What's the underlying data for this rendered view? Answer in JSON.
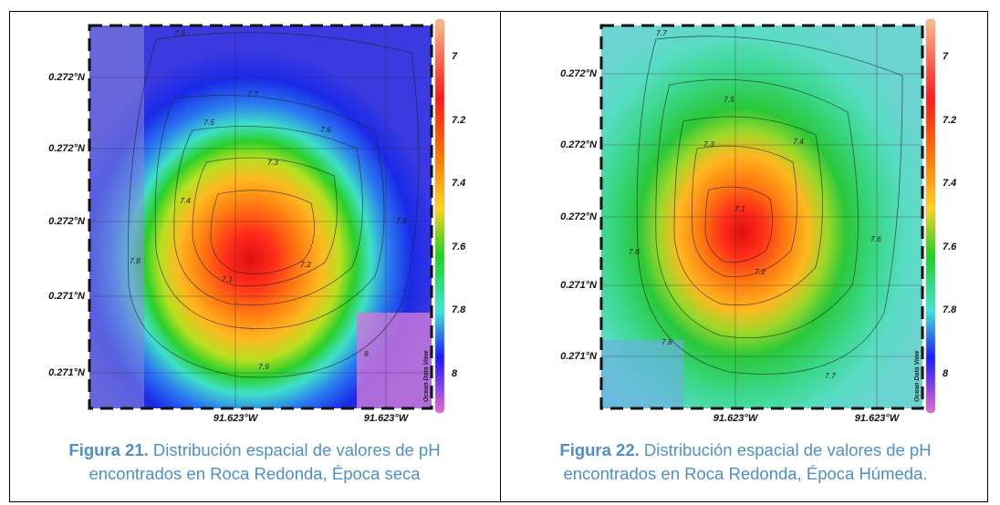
{
  "colors": {
    "caption": "#4f8fc8",
    "scale": [
      "#f9c08a",
      "#ff1a1a",
      "#ff7f00",
      "#ffd21f",
      "#1fd21f",
      "#3fe6d6",
      "#1a1aff",
      "#e66ad2"
    ]
  },
  "figures": [
    {
      "y_ticks": [
        "0.272°N",
        "0.272°N",
        "0.272°N",
        "0.271°N",
        "0.271°N"
      ],
      "x_ticks": [
        "91.623°W",
        "91.623°W"
      ],
      "colorbar_ticks": [
        "7",
        "7.2",
        "7.4",
        "7.6",
        "7.8",
        "8"
      ],
      "contour_labels": [
        "7.9",
        "7.7",
        "7.6",
        "7.5",
        "7.3",
        "7.4",
        "7.8",
        "7.1",
        "7.2",
        "7.8",
        "7.9",
        "8"
      ],
      "watermark": "Ocean Data View",
      "caption_label": "Figura 21.",
      "caption_line1": "Distribución espacial de valores de pH",
      "caption_line2": "encontrados en Roca Redonda, Época seca"
    },
    {
      "y_ticks": [
        "0.272°N",
        "0.272°N",
        "0.272°N",
        "0.271°N",
        "0.271°N"
      ],
      "x_ticks": [
        "91.623°W",
        "91.623°W"
      ],
      "colorbar_ticks": [
        "7",
        "7.2",
        "7.4",
        "7.6",
        "7.8",
        "8"
      ],
      "contour_labels": [
        "7.7",
        "7.5",
        "7.4",
        "7.3",
        "7.1",
        "7.2",
        "7.6",
        "7.6",
        "7.8",
        "7.7"
      ],
      "watermark": "Ocean Data View",
      "caption_label": "Figura 22.",
      "caption_line1": "Distribución espacial de valores de pH",
      "caption_line2": "encontrados en Roca Redonda, Época Húmeda."
    }
  ]
}
